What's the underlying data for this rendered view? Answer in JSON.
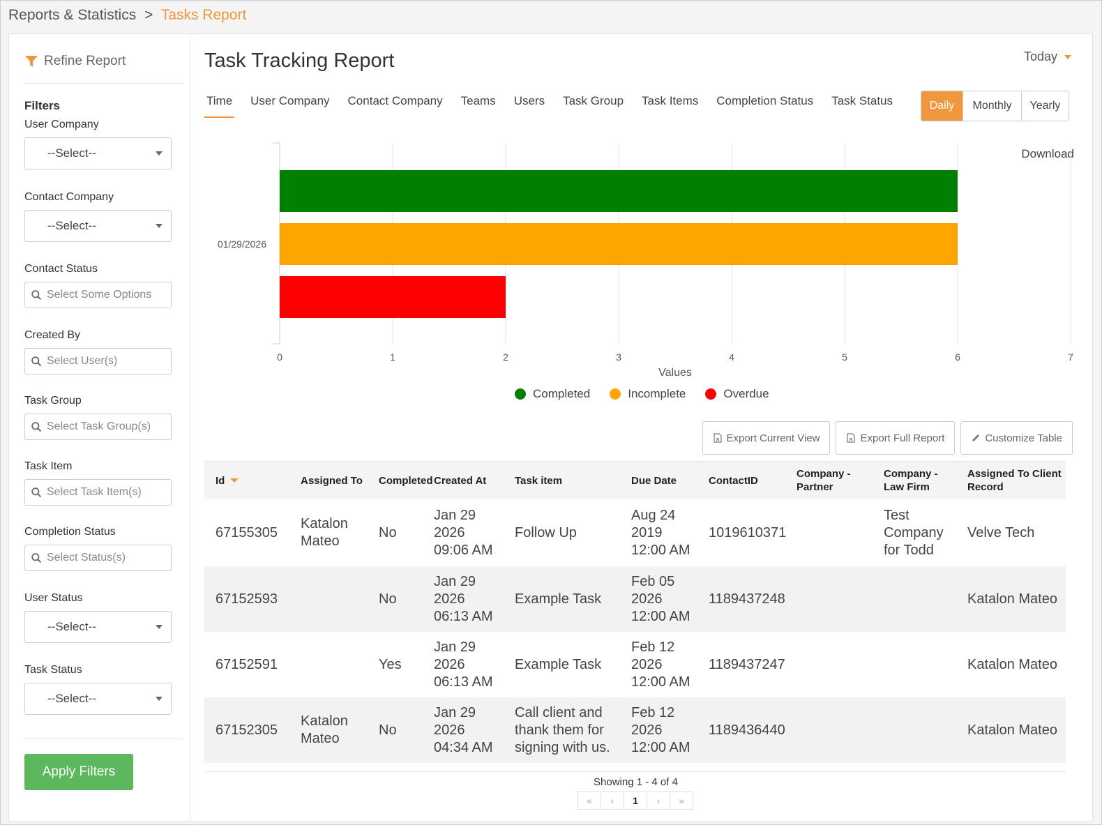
{
  "breadcrumb": {
    "parent": "Reports & Statistics",
    "separator": ">",
    "current": "Tasks Report"
  },
  "sidebar": {
    "refine_label": "Refine Report",
    "filters_title": "Filters",
    "filters": [
      {
        "label": "User Company",
        "type": "select",
        "value": "--Select--"
      },
      {
        "label": "Contact Company",
        "type": "select",
        "value": "--Select--"
      },
      {
        "label": "Contact Status",
        "type": "search",
        "placeholder": "Select Some Options"
      },
      {
        "label": "Created By",
        "type": "search",
        "placeholder": "Select User(s)"
      },
      {
        "label": "Task Group",
        "type": "search",
        "placeholder": "Select Task Group(s)"
      },
      {
        "label": "Task Item",
        "type": "search",
        "placeholder": "Select Task Item(s)"
      },
      {
        "label": "Completion Status",
        "type": "search",
        "placeholder": "Select Status(s)"
      },
      {
        "label": "User Status",
        "type": "select",
        "value": "--Select--"
      },
      {
        "label": "Task Status",
        "type": "select",
        "value": "--Select--"
      }
    ],
    "apply_label": "Apply Filters"
  },
  "main": {
    "title": "Task Tracking Report",
    "date_range": "Today",
    "tabs": [
      "Time",
      "User Company",
      "Contact Company",
      "Teams",
      "Users",
      "Task Group",
      "Task Items",
      "Completion Status",
      "Task Status"
    ],
    "active_tab": "Time",
    "periods": [
      "Daily",
      "Monthly",
      "Yearly"
    ],
    "active_period": "Daily",
    "download_label": "Download",
    "actions": {
      "export_current": "Export Current View",
      "export_full": "Export Full Report",
      "customize": "Customize Table"
    }
  },
  "chart_data": {
    "type": "bar",
    "orientation": "horizontal",
    "categories": [
      "01/29/2026"
    ],
    "series": [
      {
        "name": "Completed",
        "values": [
          6
        ],
        "color": "#008000"
      },
      {
        "name": "Incomplete",
        "values": [
          6
        ],
        "color": "#ffa500"
      },
      {
        "name": "Overdue",
        "values": [
          2
        ],
        "color": "#ff0000"
      }
    ],
    "xlabel": "Values",
    "xlim": [
      0,
      7
    ],
    "xticks": [
      0,
      1,
      2,
      3,
      4,
      5,
      6,
      7
    ],
    "grid": true,
    "legend": "bottom"
  },
  "table": {
    "columns": [
      "Id",
      "Assigned To",
      "Completed",
      "Created At",
      "Task item",
      "Due Date",
      "ContactID",
      "Company - Partner",
      "Company - Law Firm",
      "Assigned To Client Record"
    ],
    "sort_column": "Id",
    "rows": [
      {
        "id": "67155305",
        "assigned_to": "Katalon Mateo",
        "completed": "No",
        "created_at": "Jan 29 2026 09:06 AM",
        "task_item": "Follow Up",
        "due_date": "Aug 24 2019 12:00 AM",
        "contact_id": "1019610371",
        "company_partner": "",
        "company_law_firm": "Test Company for Todd",
        "client_record": "Velve Tech"
      },
      {
        "id": "67152593",
        "assigned_to": "",
        "completed": "No",
        "created_at": "Jan 29 2026 06:13 AM",
        "task_item": "Example Task",
        "due_date": "Feb 05 2026 12:00 AM",
        "contact_id": "1189437248",
        "company_partner": "",
        "company_law_firm": "",
        "client_record": "Katalon Mateo"
      },
      {
        "id": "67152591",
        "assigned_to": "",
        "completed": "Yes",
        "created_at": "Jan 29 2026 06:13 AM",
        "task_item": "Example Task",
        "due_date": "Feb 12 2026 12:00 AM",
        "contact_id": "1189437247",
        "company_partner": "",
        "company_law_firm": "",
        "client_record": "Katalon Mateo"
      },
      {
        "id": "67152305",
        "assigned_to": "Katalon Mateo",
        "completed": "No",
        "created_at": "Jan 29 2026 04:34 AM",
        "task_item": "Call client and thank them for signing with us.",
        "due_date": "Feb 12 2026 12:00 AM",
        "contact_id": "1189436440",
        "company_partner": "",
        "company_law_firm": "",
        "client_record": "Katalon Mateo"
      }
    ]
  },
  "pagination": {
    "showing": "Showing 1 - 4 of 4",
    "first": "«",
    "prev": "‹",
    "current": "1",
    "next": "›",
    "last": "»"
  }
}
